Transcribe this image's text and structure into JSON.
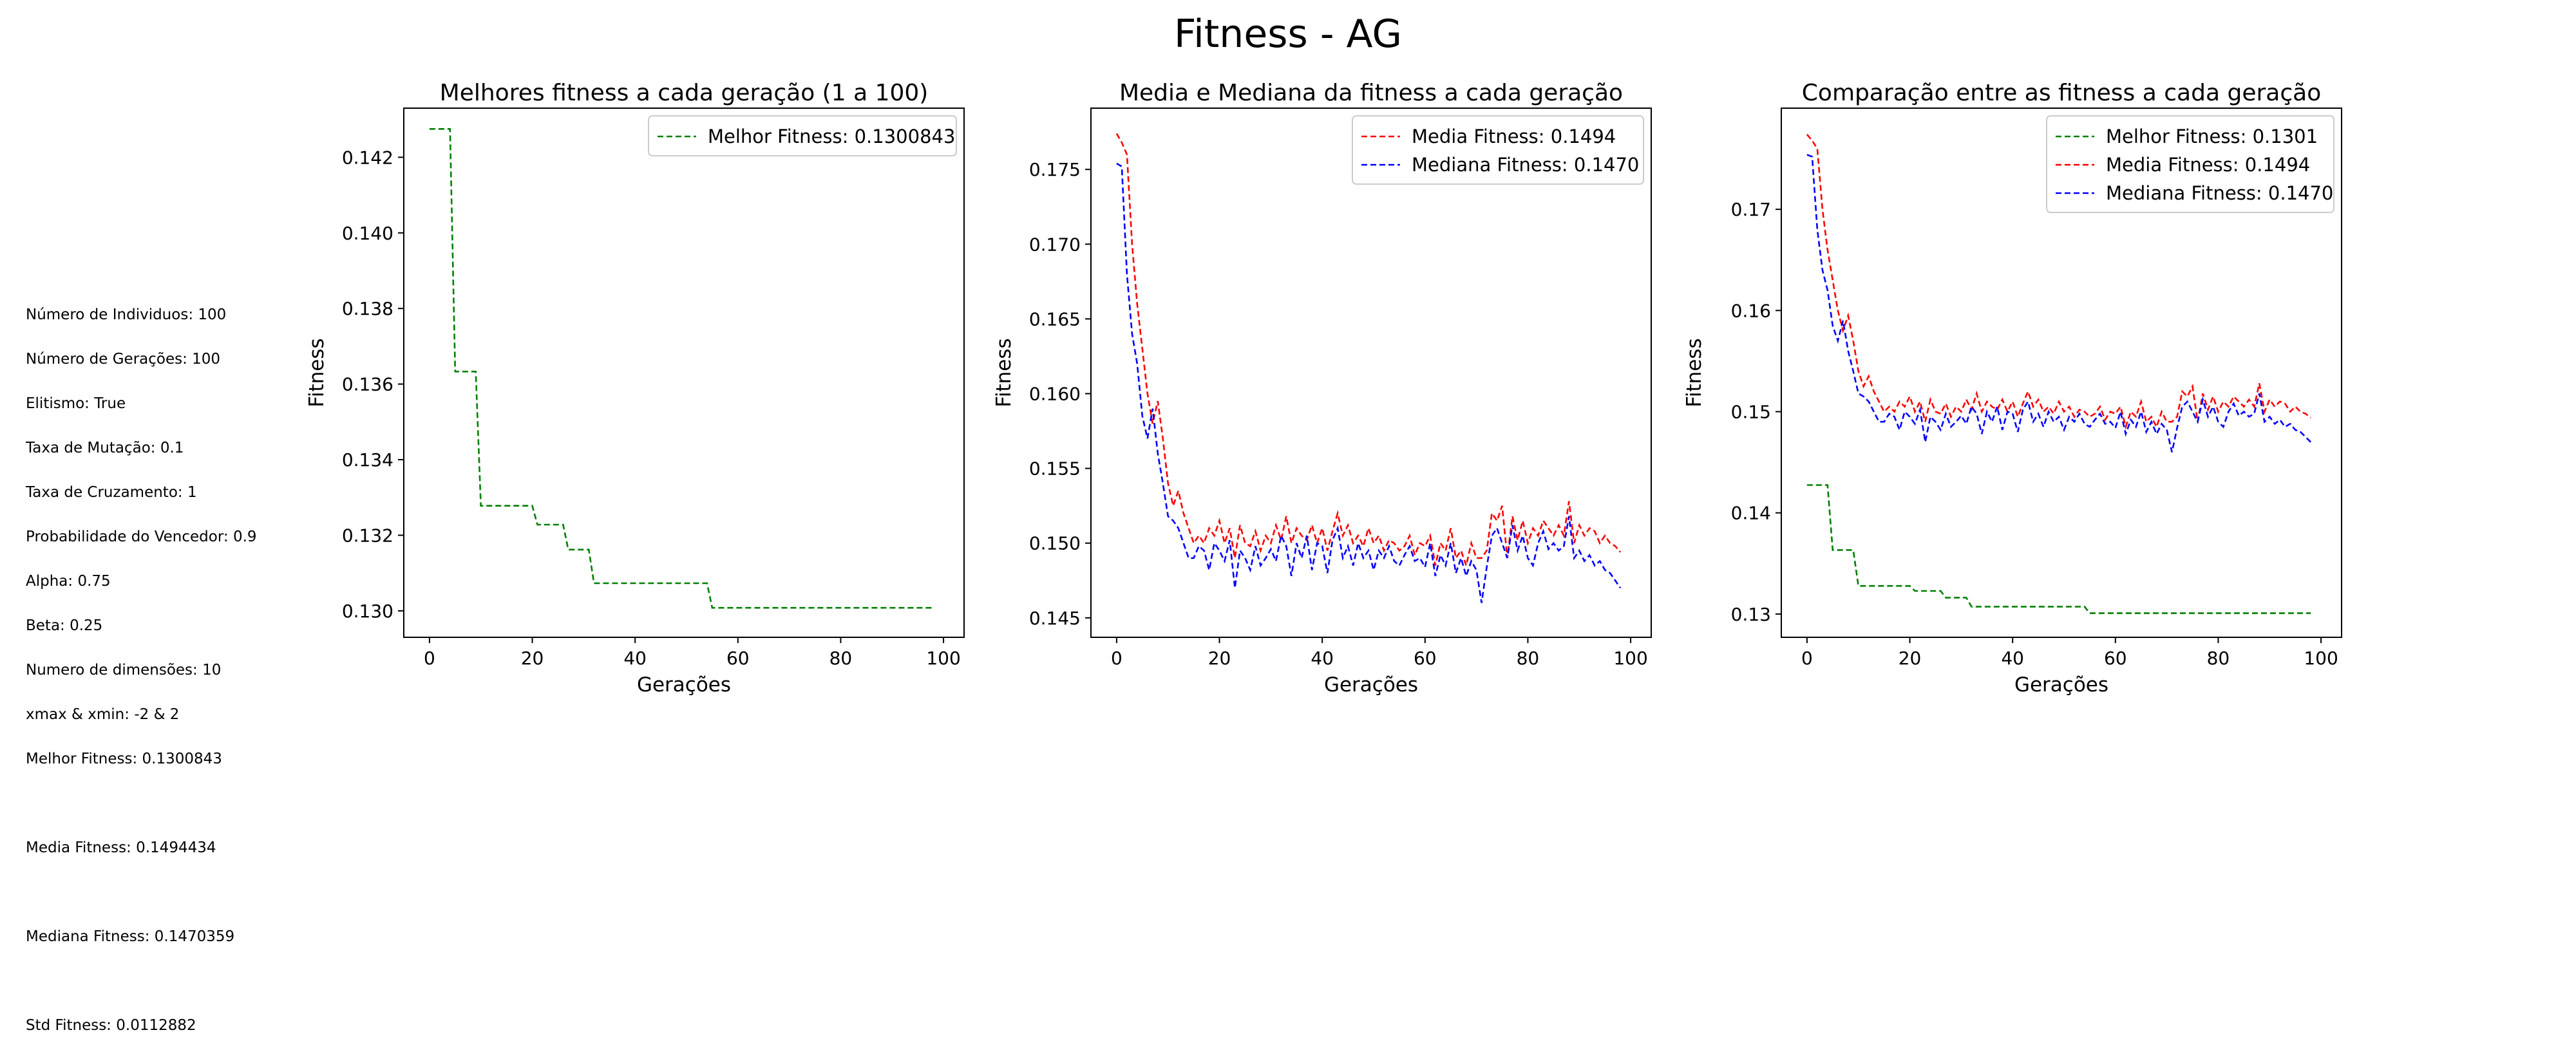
{
  "suptitle": "Fitness - AG",
  "params": {
    "lines": [
      "Número de Individuos: 100",
      "Número de Gerações: 100",
      "Elitismo: True",
      "Taxa de Mutação: 0.1",
      "Taxa de Cruzamento: 1",
      "Probabilidade do Vencedor: 0.9",
      "Alpha: 0.75",
      "Beta: 0.25",
      "Numero de dimensões: 10",
      "xmax & xmin: -2 & 2",
      "Melhor Fitness: 0.1300843"
    ],
    "media": "Media Fitness: 0.1494434",
    "mediana": "Mediana Fitness: 0.1470359",
    "std": "Std Fitness: 0.0112882"
  },
  "colors": {
    "best": "#008000",
    "mean": "#ff0000",
    "median": "#0000ff"
  },
  "chart_data": [
    {
      "type": "line",
      "title": "Melhores fitness a cada geração (1 a 100)",
      "xlabel": "Gerações",
      "ylabel": "Fitness",
      "xlim": [
        -5,
        104
      ],
      "ylim": [
        0.1293,
        0.1433
      ],
      "xticks": [
        0,
        20,
        40,
        60,
        80,
        100
      ],
      "yticks": [
        0.13,
        0.132,
        0.134,
        0.136,
        0.138,
        0.14,
        0.142
      ],
      "ytick_decimals": 3,
      "legend": "top-right",
      "series": [
        {
          "name": "Melhor Fitness: 0.1300843",
          "color": "#008000",
          "style": "dashed",
          "x": [
            0,
            4,
            5,
            9,
            10,
            20,
            21,
            26,
            27,
            31,
            32,
            54,
            55,
            98
          ],
          "y": [
            0.14275,
            0.14275,
            0.13633,
            0.13633,
            0.13278,
            0.13278,
            0.13228,
            0.13228,
            0.13162,
            0.13162,
            0.13073,
            0.13073,
            0.13008,
            0.13008
          ]
        }
      ]
    },
    {
      "type": "line",
      "title": "Media e Mediana da fitness a cada geração",
      "xlabel": "Gerações",
      "ylabel": "Fitness",
      "xlim": [
        -5,
        104
      ],
      "ylim": [
        0.1437,
        0.1791
      ],
      "xticks": [
        0,
        20,
        40,
        60,
        80,
        100
      ],
      "yticks": [
        0.145,
        0.15,
        0.155,
        0.16,
        0.165,
        0.17,
        0.175
      ],
      "ytick_decimals": 3,
      "legend": "top-right",
      "series": [
        {
          "name": "Media Fitness: 0.1494",
          "color": "#ff0000",
          "style": "dashed",
          "x": [
            0,
            1,
            2,
            3,
            4,
            5,
            6,
            7,
            8,
            9,
            10,
            11,
            12,
            13,
            14,
            15,
            16,
            17,
            18,
            19,
            20,
            21,
            22,
            23,
            24,
            25,
            26,
            27,
            28,
            29,
            30,
            31,
            32,
            33,
            34,
            35,
            36,
            37,
            38,
            39,
            40,
            41,
            42,
            43,
            44,
            45,
            46,
            47,
            48,
            49,
            50,
            51,
            52,
            53,
            54,
            55,
            56,
            57,
            58,
            59,
            60,
            61,
            62,
            63,
            64,
            65,
            66,
            67,
            68,
            69,
            70,
            71,
            72,
            73,
            74,
            75,
            76,
            77,
            78,
            79,
            80,
            81,
            82,
            83,
            84,
            85,
            86,
            87,
            88,
            89,
            90,
            91,
            92,
            93,
            94,
            95,
            96,
            97,
            98
          ],
          "y": [
            0.1774,
            0.1768,
            0.176,
            0.17,
            0.166,
            0.163,
            0.16,
            0.158,
            0.1595,
            0.157,
            0.154,
            0.1525,
            0.1535,
            0.152,
            0.151,
            0.15,
            0.1505,
            0.15,
            0.151,
            0.1505,
            0.1515,
            0.15,
            0.151,
            0.149,
            0.1512,
            0.15,
            0.1498,
            0.1508,
            0.1495,
            0.1505,
            0.15,
            0.1512,
            0.1502,
            0.1518,
            0.15,
            0.151,
            0.1505,
            0.1502,
            0.1512,
            0.15,
            0.151,
            0.1495,
            0.1508,
            0.152,
            0.1505,
            0.1512,
            0.15,
            0.1505,
            0.1498,
            0.151,
            0.15,
            0.1505,
            0.1495,
            0.1502,
            0.15,
            0.1495,
            0.1498,
            0.1505,
            0.1492,
            0.15,
            0.1498,
            0.1505,
            0.1485,
            0.15,
            0.1495,
            0.151,
            0.149,
            0.1495,
            0.1485,
            0.15,
            0.149,
            0.149,
            0.1495,
            0.152,
            0.1515,
            0.1525,
            0.149,
            0.1518,
            0.1502,
            0.1515,
            0.15,
            0.151,
            0.1505,
            0.1515,
            0.151,
            0.1505,
            0.1512,
            0.1505,
            0.1528,
            0.15,
            0.1512,
            0.1505,
            0.151,
            0.1508,
            0.15,
            0.1505,
            0.15,
            0.1498,
            0.1494
          ]
        },
        {
          "name": "Mediana Fitness: 0.1470",
          "color": "#0000ff",
          "style": "dashed",
          "x": [
            0,
            1,
            2,
            3,
            4,
            5,
            6,
            7,
            8,
            9,
            10,
            11,
            12,
            13,
            14,
            15,
            16,
            17,
            18,
            19,
            20,
            21,
            22,
            23,
            24,
            25,
            26,
            27,
            28,
            29,
            30,
            31,
            32,
            33,
            34,
            35,
            36,
            37,
            38,
            39,
            40,
            41,
            42,
            43,
            44,
            45,
            46,
            47,
            48,
            49,
            50,
            51,
            52,
            53,
            54,
            55,
            56,
            57,
            58,
            59,
            60,
            61,
            62,
            63,
            64,
            65,
            66,
            67,
            68,
            69,
            70,
            71,
            72,
            73,
            74,
            75,
            76,
            77,
            78,
            79,
            80,
            81,
            82,
            83,
            84,
            85,
            86,
            87,
            88,
            89,
            90,
            91,
            92,
            93,
            94,
            95,
            96,
            97,
            98
          ],
          "y": [
            0.1754,
            0.1752,
            0.168,
            0.164,
            0.162,
            0.1585,
            0.157,
            0.159,
            0.156,
            0.154,
            0.1518,
            0.1515,
            0.151,
            0.15,
            0.149,
            0.149,
            0.1498,
            0.1495,
            0.1482,
            0.15,
            0.1495,
            0.1488,
            0.1502,
            0.147,
            0.1495,
            0.149,
            0.1482,
            0.1498,
            0.1485,
            0.149,
            0.1496,
            0.1488,
            0.1505,
            0.1498,
            0.1478,
            0.15,
            0.149,
            0.1505,
            0.1482,
            0.15,
            0.1498,
            0.148,
            0.1502,
            0.151,
            0.149,
            0.1498,
            0.1485,
            0.15,
            0.149,
            0.1495,
            0.1482,
            0.1495,
            0.149,
            0.1498,
            0.1488,
            0.1485,
            0.1492,
            0.1498,
            0.1488,
            0.149,
            0.1484,
            0.15,
            0.1478,
            0.1492,
            0.1485,
            0.15,
            0.148,
            0.149,
            0.1478,
            0.1488,
            0.1482,
            0.146,
            0.1484,
            0.1505,
            0.151,
            0.15,
            0.149,
            0.1512,
            0.1495,
            0.1505,
            0.149,
            0.1485,
            0.15,
            0.1508,
            0.1496,
            0.15,
            0.1495,
            0.1498,
            0.1518,
            0.149,
            0.1495,
            0.1488,
            0.1492,
            0.1485,
            0.1488,
            0.1482,
            0.148,
            0.1475,
            0.147
          ]
        }
      ]
    },
    {
      "type": "line",
      "title": "Comparação entre as fitness a cada geração",
      "xlabel": "Gerações",
      "ylabel": "Fitness",
      "xlim": [
        -5,
        104
      ],
      "ylim": [
        0.1277,
        0.18
      ],
      "xticks": [
        0,
        20,
        40,
        60,
        80,
        100
      ],
      "yticks": [
        0.13,
        0.14,
        0.15,
        0.16,
        0.17
      ],
      "ytick_decimals": 2,
      "legend": "top-right",
      "series": [
        {
          "name": "Melhor Fitness: 0.1301",
          "color": "#008000",
          "style": "dashed",
          "ref": [
            0,
            0
          ]
        },
        {
          "name": "Media Fitness: 0.1494",
          "color": "#ff0000",
          "style": "dashed",
          "ref": [
            1,
            0
          ]
        },
        {
          "name": "Mediana Fitness: 0.1470",
          "color": "#0000ff",
          "style": "dashed",
          "ref": [
            1,
            1
          ]
        }
      ]
    }
  ]
}
